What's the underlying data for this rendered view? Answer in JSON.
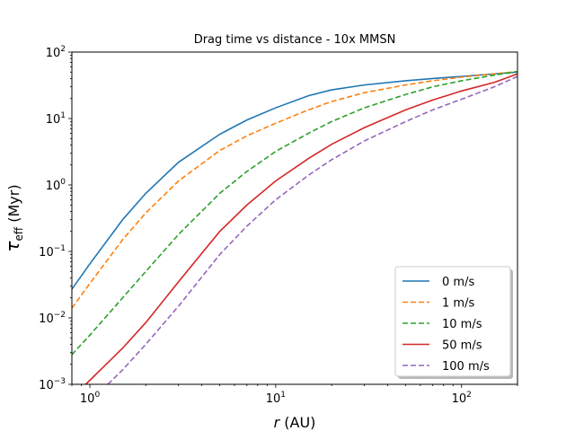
{
  "chart_data": {
    "type": "line",
    "title": "Drag time vs distance - 10x MMSN",
    "xlabel": {
      "symbol": "r",
      "unit": "(AU)"
    },
    "ylabel": {
      "symbol": "τ",
      "subscript": "eff",
      "unit": "(Myr)"
    },
    "xscale": "log",
    "yscale": "log",
    "xlim": [
      0.8,
      200
    ],
    "ylim": [
      0.001,
      100
    ],
    "xticks": [
      {
        "value": 1,
        "base": "10",
        "exp": "0"
      },
      {
        "value": 10,
        "base": "10",
        "exp": "1"
      },
      {
        "value": 100,
        "base": "10",
        "exp": "2"
      }
    ],
    "yticks": [
      {
        "value": 0.001,
        "base": "10",
        "exp": "−3"
      },
      {
        "value": 0.01,
        "base": "10",
        "exp": "−2"
      },
      {
        "value": 0.1,
        "base": "10",
        "exp": "−1"
      },
      {
        "value": 1,
        "base": "10",
        "exp": "0"
      },
      {
        "value": 10,
        "base": "10",
        "exp": "1"
      },
      {
        "value": 100,
        "base": "10",
        "exp": "2"
      }
    ],
    "legend_position": "lower-right",
    "series": [
      {
        "name": "0 m/s",
        "color": "#1f77b4",
        "dash": "solid",
        "x": [
          0.8,
          1,
          1.5,
          2,
          3,
          5,
          7,
          10,
          15,
          20,
          30,
          50,
          70,
          100,
          150,
          200
        ],
        "y": [
          0.027,
          0.065,
          0.3,
          0.75,
          2.2,
          5.8,
          9.5,
          14.5,
          22,
          27,
          32,
          37,
          40,
          43,
          47,
          50
        ]
      },
      {
        "name": "1 m/s",
        "color": "#ff7f0e",
        "dash": "dashed",
        "x": [
          0.8,
          1,
          1.5,
          2,
          3,
          5,
          7,
          10,
          15,
          20,
          30,
          50,
          70,
          100,
          150,
          200
        ],
        "y": [
          0.014,
          0.033,
          0.15,
          0.38,
          1.15,
          3.3,
          5.5,
          8.5,
          13.5,
          18,
          24.5,
          32,
          37,
          42,
          47,
          51
        ]
      },
      {
        "name": "10 m/s",
        "color": "#2ca02c",
        "dash": "dashed",
        "x": [
          0.8,
          1,
          1.5,
          2,
          3,
          5,
          7,
          10,
          15,
          20,
          30,
          50,
          70,
          100,
          150,
          200
        ],
        "y": [
          0.0028,
          0.0055,
          0.02,
          0.05,
          0.18,
          0.75,
          1.6,
          3.2,
          6,
          9,
          14.5,
          23,
          30,
          37,
          45,
          51
        ]
      },
      {
        "name": "50 m/s",
        "color": "#d62728",
        "dash": "solid",
        "x": [
          0.95,
          1,
          1.5,
          2,
          3,
          5,
          7,
          10,
          15,
          20,
          30,
          50,
          70,
          100,
          150,
          200
        ],
        "y": [
          0.001,
          0.00115,
          0.0035,
          0.0085,
          0.035,
          0.2,
          0.5,
          1.15,
          2.5,
          4.1,
          7.3,
          13.5,
          19,
          26,
          35,
          47
        ]
      },
      {
        "name": "100 m/s",
        "color": "#9467bd",
        "dash": "dashed",
        "x": [
          1.25,
          1.5,
          2,
          3,
          5,
          7,
          10,
          15,
          20,
          30,
          50,
          70,
          100,
          150,
          200
        ],
        "y": [
          0.001,
          0.00165,
          0.004,
          0.015,
          0.09,
          0.24,
          0.6,
          1.4,
          2.4,
          4.6,
          9,
          13.5,
          19.5,
          30,
          43
        ]
      }
    ]
  }
}
